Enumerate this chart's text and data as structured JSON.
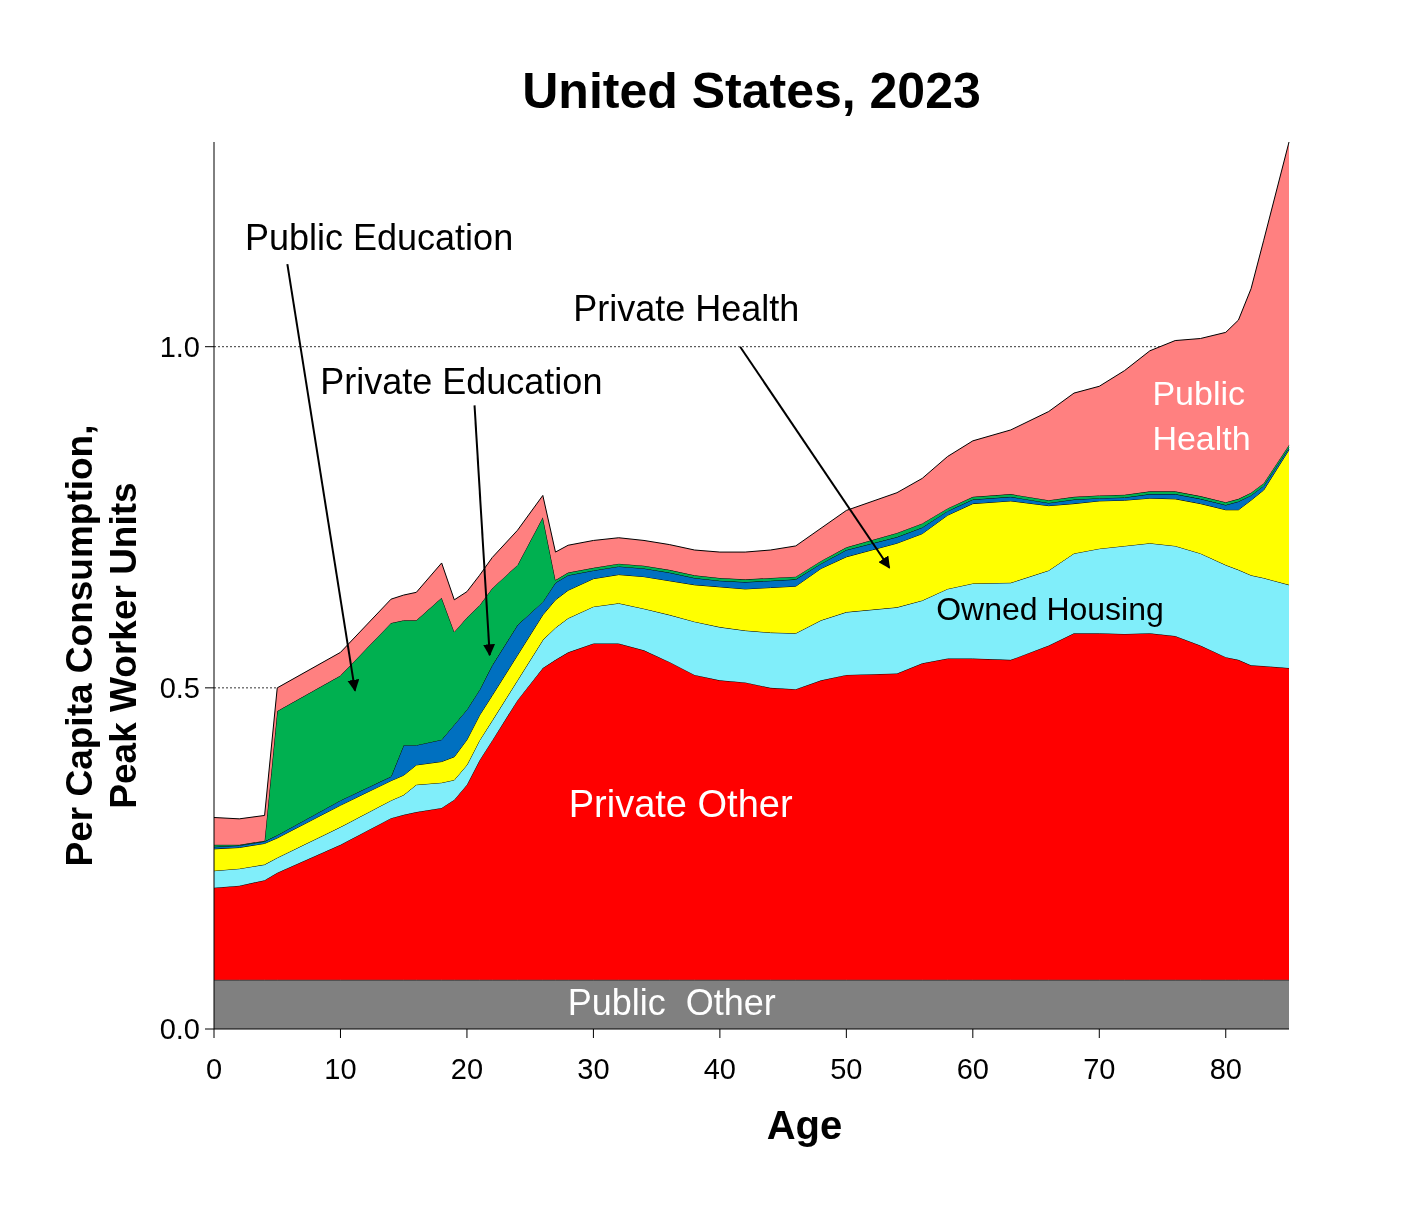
{
  "chart_data": {
    "type": "area",
    "stacked": true,
    "title": "United States, 2023",
    "xlabel": "Age",
    "ylabel": "Per Capita Consumption,\nPeak Worker Units",
    "x": [
      0,
      2,
      4,
      5,
      10,
      14,
      15,
      16,
      18,
      19,
      20,
      21,
      22,
      24,
      26,
      27,
      28,
      30,
      32,
      34,
      36,
      38,
      40,
      42,
      44,
      46,
      48,
      50,
      54,
      56,
      58,
      60,
      63,
      66,
      68,
      70,
      72,
      74,
      76,
      78,
      80,
      81,
      82,
      83,
      85
    ],
    "series": [
      {
        "name": "Public  Other",
        "color": "#808080",
        "values": [
          0.072,
          0.072,
          0.072,
          0.072,
          0.072,
          0.072,
          0.072,
          0.072,
          0.072,
          0.072,
          0.072,
          0.072,
          0.072,
          0.072,
          0.072,
          0.072,
          0.072,
          0.072,
          0.072,
          0.072,
          0.072,
          0.072,
          0.072,
          0.072,
          0.072,
          0.072,
          0.072,
          0.072,
          0.072,
          0.072,
          0.072,
          0.072,
          0.072,
          0.072,
          0.072,
          0.072,
          0.072,
          0.072,
          0.072,
          0.072,
          0.072,
          0.072,
          0.072,
          0.072,
          0.072
        ]
      },
      {
        "name": "Private Other",
        "color": "#ff0000",
        "values": [
          0.135,
          0.138,
          0.146,
          0.157,
          0.198,
          0.237,
          0.242,
          0.246,
          0.252,
          0.264,
          0.286,
          0.322,
          0.351,
          0.41,
          0.457,
          0.469,
          0.48,
          0.493,
          0.493,
          0.483,
          0.466,
          0.447,
          0.439,
          0.436,
          0.428,
          0.426,
          0.439,
          0.447,
          0.449,
          0.464,
          0.471,
          0.471,
          0.469,
          0.49,
          0.508,
          0.508,
          0.507,
          0.508,
          0.504,
          0.49,
          0.473,
          0.469,
          0.461,
          0.46,
          0.457
        ]
      },
      {
        "name": "Owned Housing",
        "color": "#80eefa",
        "values": [
          0.025,
          0.025,
          0.023,
          0.022,
          0.026,
          0.026,
          0.029,
          0.04,
          0.037,
          0.029,
          0.029,
          0.029,
          0.029,
          0.029,
          0.041,
          0.047,
          0.05,
          0.054,
          0.059,
          0.061,
          0.069,
          0.078,
          0.078,
          0.076,
          0.081,
          0.082,
          0.088,
          0.092,
          0.097,
          0.092,
          0.102,
          0.11,
          0.113,
          0.11,
          0.117,
          0.124,
          0.129,
          0.132,
          0.132,
          0.135,
          0.135,
          0.132,
          0.132,
          0.129,
          0.122
        ]
      },
      {
        "name": "Private Health",
        "color": "#ffff00",
        "values": [
          0.032,
          0.031,
          0.031,
          0.029,
          0.032,
          0.029,
          0.029,
          0.029,
          0.031,
          0.034,
          0.037,
          0.037,
          0.037,
          0.037,
          0.037,
          0.041,
          0.041,
          0.041,
          0.042,
          0.047,
          0.05,
          0.054,
          0.059,
          0.061,
          0.066,
          0.069,
          0.076,
          0.081,
          0.094,
          0.098,
          0.108,
          0.117,
          0.12,
          0.095,
          0.073,
          0.07,
          0.067,
          0.066,
          0.069,
          0.073,
          0.081,
          0.088,
          0.11,
          0.129,
          0.198
        ]
      },
      {
        "name": "Private Education",
        "color": "#0070c0",
        "values": [
          0.003,
          0.003,
          0.003,
          0.004,
          0.007,
          0.006,
          0.044,
          0.029,
          0.032,
          0.047,
          0.044,
          0.037,
          0.044,
          0.044,
          0.019,
          0.025,
          0.022,
          0.012,
          0.012,
          0.012,
          0.012,
          0.01,
          0.009,
          0.01,
          0.01,
          0.01,
          0.007,
          0.01,
          0.009,
          0.009,
          0.006,
          0.006,
          0.006,
          0.004,
          0.006,
          0.004,
          0.004,
          0.006,
          0.007,
          0.007,
          0.007,
          0.012,
          0.007,
          0.006,
          0.003
        ]
      },
      {
        "name": "Public Education",
        "color": "#00b050",
        "values": [
          0.003,
          0.001,
          0.001,
          0.182,
          0.183,
          0.225,
          0.183,
          0.183,
          0.208,
          0.136,
          0.135,
          0.124,
          0.113,
          0.088,
          0.124,
          0.004,
          0.004,
          0.004,
          0.004,
          0.004,
          0.004,
          0.004,
          0.004,
          0.004,
          0.004,
          0.004,
          0.004,
          0.004,
          0.006,
          0.006,
          0.004,
          0.004,
          0.004,
          0.004,
          0.004,
          0.004,
          0.004,
          0.004,
          0.004,
          0.004,
          0.004,
          0.004,
          0.004,
          0.004,
          0.004
        ]
      },
      {
        "name": "Public Health",
        "color": "#ff8080",
        "values": [
          0.04,
          0.038,
          0.037,
          0.034,
          0.034,
          0.035,
          0.037,
          0.041,
          0.051,
          0.047,
          0.038,
          0.044,
          0.045,
          0.051,
          0.032,
          0.041,
          0.04,
          0.04,
          0.038,
          0.037,
          0.037,
          0.037,
          0.038,
          0.04,
          0.041,
          0.045,
          0.048,
          0.054,
          0.059,
          0.066,
          0.076,
          0.082,
          0.094,
          0.13,
          0.152,
          0.16,
          0.182,
          0.206,
          0.221,
          0.231,
          0.249,
          0.262,
          0.299,
          0.356,
          0.444
        ]
      }
    ],
    "xlim": [
      0,
      85
    ],
    "xticks": [
      0,
      10,
      20,
      30,
      40,
      50,
      60,
      70,
      80
    ],
    "ylim": [
      0,
      1.3
    ],
    "yticks": [
      {
        "value": 0,
        "label": "0.0"
      },
      {
        "value": 0.5,
        "label": "0.5"
      },
      {
        "value": 1,
        "label": "1.0"
      }
    ],
    "grid": "y"
  }
}
